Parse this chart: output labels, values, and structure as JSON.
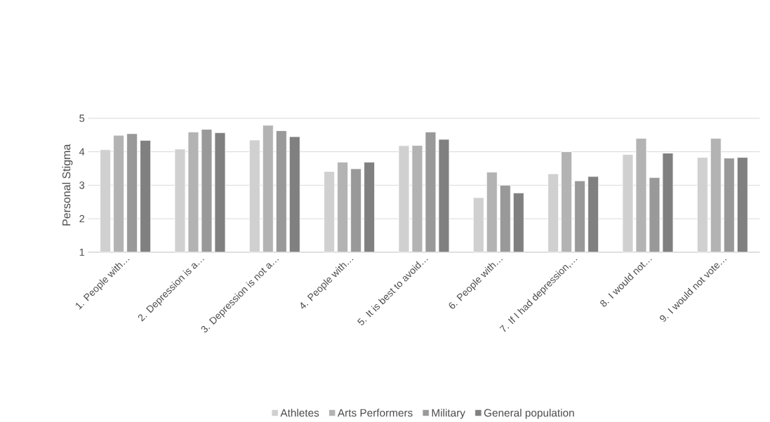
{
  "chart_data": {
    "type": "bar",
    "ylabel": "Personal Stigma",
    "categories": [
      "1. People with…",
      "2. Depression is a…",
      "3. Depression is not a…",
      "4. People with…",
      "5. It is best to avoid…",
      "6. People with…",
      "7. If I had depression,…",
      "8. I would not…",
      "9. I would not vote…"
    ],
    "series": [
      {
        "name": "Athletes",
        "color": "#d0d0d0",
        "values": [
          4.06,
          4.08,
          4.35,
          3.41,
          4.18,
          2.63,
          3.34,
          3.92,
          3.83
        ]
      },
      {
        "name": "Arts Performers",
        "color": "#b3b3b3",
        "values": [
          4.49,
          4.59,
          4.79,
          3.69,
          4.19,
          3.39,
          4.0,
          4.4,
          4.4
        ]
      },
      {
        "name": "Military",
        "color": "#999999",
        "values": [
          4.54,
          4.67,
          4.63,
          3.49,
          4.59,
          3.0,
          3.13,
          3.23,
          3.81
        ]
      },
      {
        "name": "General population",
        "color": "#808080",
        "values": [
          4.34,
          4.57,
          4.45,
          3.69,
          4.37,
          2.77,
          3.26,
          3.96,
          3.83
        ]
      }
    ],
    "ylim": [
      1,
      5
    ],
    "yticks": [
      1,
      2,
      3,
      4,
      5
    ],
    "grid": "y",
    "legend": "bottom"
  }
}
